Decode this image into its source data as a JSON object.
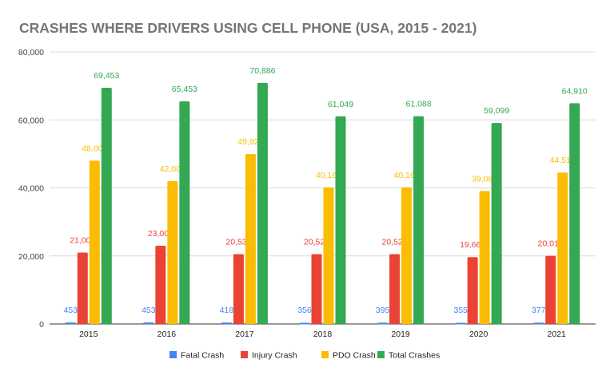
{
  "chart_data": {
    "type": "bar",
    "title": "CRASHES WHERE DRIVERS USING CELL PHONE (USA, 2015 - 2021)",
    "xlabel": "",
    "ylabel": "",
    "categories": [
      "2015",
      "2016",
      "2017",
      "2018",
      "2019",
      "2020",
      "2021"
    ],
    "ylim": [
      0,
      80000
    ],
    "yticks": [
      0,
      20000,
      40000,
      60000,
      80000
    ],
    "ytick_labels": [
      "0",
      "20,000",
      "40,000",
      "60,000",
      "80,000"
    ],
    "grid": true,
    "legend_position": "bottom",
    "series": [
      {
        "name": "Fatal Crash",
        "color": "#4285f4",
        "values": [
          453,
          453,
          418,
          356,
          395,
          355,
          377
        ],
        "labels": [
          "453",
          "453",
          "418",
          "356",
          "395",
          "355",
          "377"
        ]
      },
      {
        "name": "Injury Crash",
        "color": "#ea4335",
        "values": [
          21000,
          23000,
          20539,
          20527,
          20527,
          19660,
          20015
        ],
        "labels": [
          "21,000",
          "23,000",
          "20,539",
          "20,527",
          "20,527",
          "19,660",
          "20,015"
        ]
      },
      {
        "name": "PDO Crash",
        "color": "#fbbc04",
        "values": [
          48000,
          42000,
          49929,
          40166,
          40166,
          39084,
          44518
        ],
        "labels": [
          "48,000",
          "42,000",
          "49,929",
          "40,166",
          "40,166",
          "39,084",
          "44,518"
        ]
      },
      {
        "name": "Total Crashes",
        "color": "#34a853",
        "values": [
          69453,
          65453,
          70886,
          61049,
          61088,
          59099,
          64910
        ],
        "labels": [
          "69,453",
          "65,453",
          "70,886",
          "61,049",
          "61,088",
          "59,099",
          "64,910"
        ]
      }
    ]
  }
}
